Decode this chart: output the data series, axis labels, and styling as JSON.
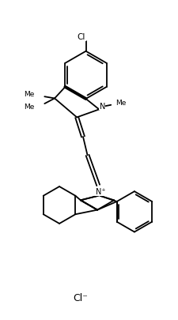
{
  "bg_color": "#ffffff",
  "line_color": "#000000",
  "lw": 1.3,
  "figsize": [
    2.26,
    4.06
  ],
  "dpi": 100,
  "cl_label": "Cl",
  "n_label": "N",
  "nplus_label": "N⁺",
  "cl_minus": "Cl⁻",
  "me_label": "Me"
}
